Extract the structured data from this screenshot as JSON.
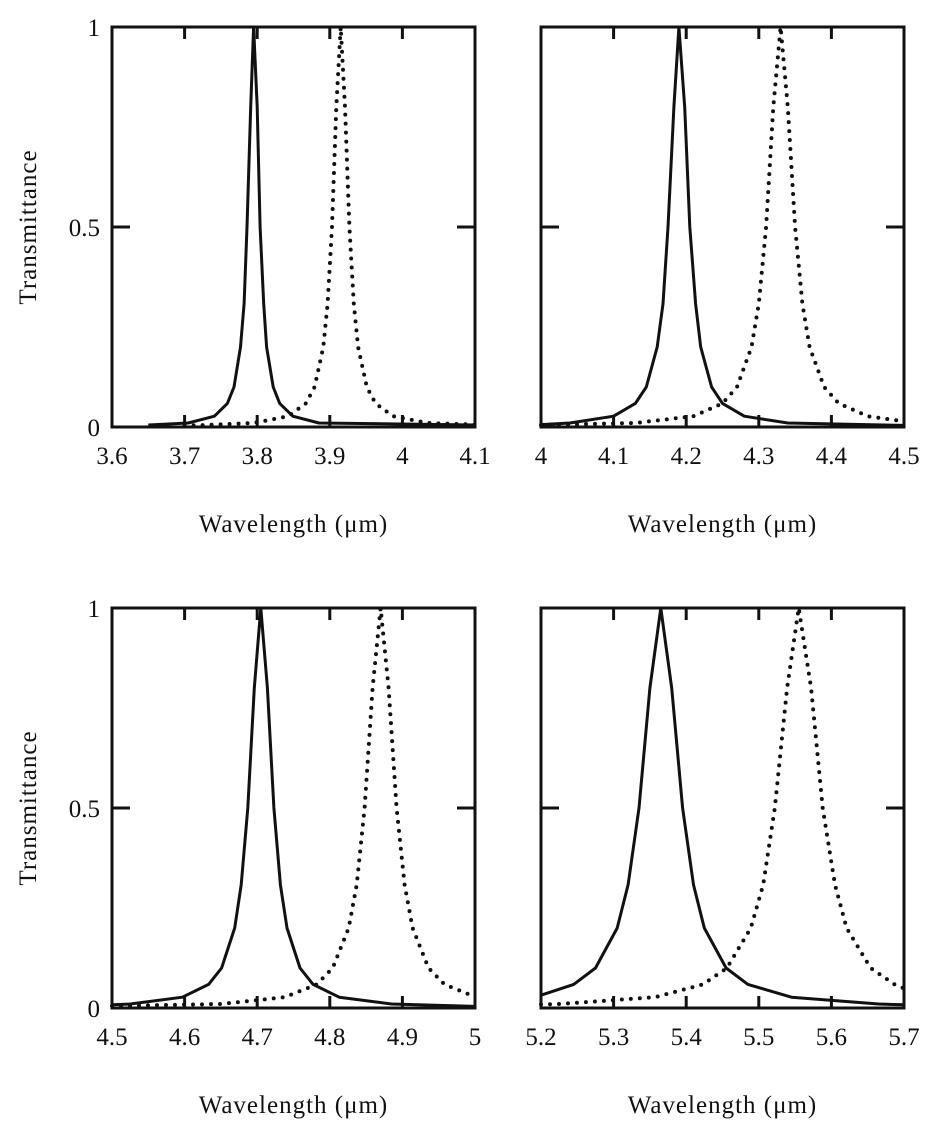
{
  "chart_data": [
    {
      "type": "line",
      "xlabel": "Wavelength (μm)",
      "ylabel": "Transmittance",
      "xlim": [
        3.6,
        4.1
      ],
      "ylim": [
        0,
        1
      ],
      "xticks": [
        "3.6",
        "3.7",
        "3.8",
        "3.9",
        "4",
        "4.1"
      ],
      "yticks": [
        "0",
        "0.5",
        "1"
      ],
      "grid": false,
      "series": [
        {
          "style": "solid",
          "x": [
            3.65,
            3.705,
            3.741,
            3.759,
            3.768,
            3.777,
            3.782,
            3.786,
            3.791,
            3.795,
            3.8,
            3.804,
            3.809,
            3.813,
            3.822,
            3.831,
            3.849,
            3.885,
            4.1
          ],
          "y": [
            0.005,
            0.01,
            0.027,
            0.059,
            0.1,
            0.2,
            0.308,
            0.5,
            0.8,
            1,
            0.8,
            0.5,
            0.308,
            0.2,
            0.1,
            0.059,
            0.027,
            0.01,
            0.005
          ]
        },
        {
          "style": "dotted",
          "x": [
            3.7,
            3.795,
            3.843,
            3.867,
            3.879,
            3.891,
            3.897,
            3.903,
            3.909,
            3.915,
            3.921,
            3.927,
            3.933,
            3.939,
            3.951,
            3.963,
            3.987,
            4.035,
            4.1
          ],
          "y": [
            0.003,
            0.01,
            0.027,
            0.059,
            0.1,
            0.2,
            0.308,
            0.5,
            0.8,
            1,
            0.8,
            0.5,
            0.308,
            0.2,
            0.1,
            0.059,
            0.027,
            0.01,
            0.006
          ]
        }
      ]
    },
    {
      "type": "line",
      "xlabel": "Wavelength (μm)",
      "ylabel": "",
      "xlim": [
        4.0,
        4.5
      ],
      "ylim": [
        0,
        1
      ],
      "xticks": [
        "4",
        "4.1",
        "4.2",
        "4.3",
        "4.4",
        "4.5"
      ],
      "yticks": [],
      "grid": false,
      "series": [
        {
          "style": "solid",
          "x": [
            4.0,
            4.04,
            4.1,
            4.13,
            4.145,
            4.16,
            4.168,
            4.175,
            4.183,
            4.19,
            4.198,
            4.205,
            4.213,
            4.22,
            4.235,
            4.25,
            4.28,
            4.34,
            4.5
          ],
          "y": [
            0.006,
            0.01,
            0.027,
            0.059,
            0.1,
            0.2,
            0.308,
            0.5,
            0.8,
            1,
            0.8,
            0.5,
            0.308,
            0.2,
            0.1,
            0.059,
            0.027,
            0.01,
            0.004
          ]
        },
        {
          "style": "dotted",
          "x": [
            4.0,
            4.13,
            4.21,
            4.25,
            4.27,
            4.29,
            4.3,
            4.31,
            4.32,
            4.33,
            4.34,
            4.35,
            4.36,
            4.37,
            4.39,
            4.41,
            4.45,
            4.5
          ],
          "y": [
            0.005,
            0.01,
            0.027,
            0.059,
            0.1,
            0.2,
            0.308,
            0.5,
            0.8,
            1,
            0.8,
            0.5,
            0.308,
            0.2,
            0.1,
            0.059,
            0.027,
            0.014
          ]
        }
      ]
    },
    {
      "type": "line",
      "xlabel": "Wavelength (μm)",
      "ylabel": "Transmittance",
      "xlim": [
        4.5,
        5.0
      ],
      "ylim": [
        0,
        1
      ],
      "xticks": [
        "4.5",
        "4.6",
        "4.7",
        "4.8",
        "4.9",
        "5"
      ],
      "yticks": [
        "0",
        "0.5",
        "1"
      ],
      "grid": false,
      "series": [
        {
          "style": "solid",
          "x": [
            4.5,
            4.525,
            4.597,
            4.633,
            4.651,
            4.669,
            4.678,
            4.687,
            4.696,
            4.705,
            4.714,
            4.723,
            4.732,
            4.741,
            4.759,
            4.777,
            4.813,
            4.885,
            5.0
          ],
          "y": [
            0.008,
            0.01,
            0.027,
            0.059,
            0.1,
            0.2,
            0.308,
            0.5,
            0.8,
            1,
            0.8,
            0.5,
            0.308,
            0.2,
            0.1,
            0.059,
            0.027,
            0.01,
            0.004
          ]
        },
        {
          "style": "dotted",
          "x": [
            4.5,
            4.65,
            4.738,
            4.782,
            4.804,
            4.826,
            4.837,
            4.848,
            4.859,
            4.87,
            4.881,
            4.892,
            4.903,
            4.914,
            4.936,
            4.958,
            5.0
          ],
          "y": [
            0.005,
            0.01,
            0.027,
            0.059,
            0.1,
            0.2,
            0.308,
            0.5,
            0.8,
            1,
            0.8,
            0.5,
            0.308,
            0.2,
            0.1,
            0.059,
            0.028
          ]
        }
      ]
    },
    {
      "type": "line",
      "xlabel": "Wavelength (μm)",
      "ylabel": "",
      "xlim": [
        5.2,
        5.7
      ],
      "ylim": [
        0,
        1
      ],
      "xticks": [
        "5.2",
        "5.3",
        "5.4",
        "5.5",
        "5.6",
        "5.7"
      ],
      "yticks": [],
      "grid": false,
      "series": [
        {
          "style": "solid",
          "x": [
            5.2,
            5.245,
            5.275,
            5.305,
            5.32,
            5.335,
            5.35,
            5.365,
            5.38,
            5.395,
            5.41,
            5.425,
            5.455,
            5.485,
            5.545,
            5.665,
            5.7
          ],
          "y": [
            0.032,
            0.059,
            0.1,
            0.2,
            0.308,
            0.5,
            0.8,
            1,
            0.8,
            0.5,
            0.308,
            0.2,
            0.1,
            0.059,
            0.027,
            0.01,
            0.008
          ]
        },
        {
          "style": "dotted",
          "x": [
            5.2,
            5.225,
            5.357,
            5.423,
            5.456,
            5.489,
            5.506,
            5.522,
            5.539,
            5.555,
            5.572,
            5.588,
            5.605,
            5.621,
            5.654,
            5.687,
            5.7
          ],
          "y": [
            0.009,
            0.01,
            0.027,
            0.059,
            0.1,
            0.2,
            0.308,
            0.5,
            0.8,
            1,
            0.8,
            0.5,
            0.308,
            0.2,
            0.1,
            0.059,
            0.049
          ]
        }
      ]
    }
  ]
}
